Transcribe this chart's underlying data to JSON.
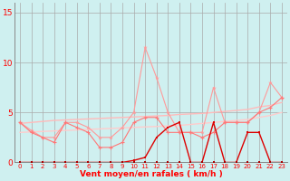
{
  "xlabel": "Vent moyen/en rafales ( km/h )",
  "xlim": [
    -0.5,
    23.5
  ],
  "ylim": [
    0,
    16
  ],
  "yticks": [
    0,
    5,
    10,
    15
  ],
  "xticks": [
    0,
    1,
    2,
    3,
    4,
    5,
    6,
    7,
    8,
    9,
    10,
    11,
    12,
    13,
    14,
    15,
    16,
    17,
    18,
    19,
    20,
    21,
    22,
    23
  ],
  "background_color": "#cff0f0",
  "grid_color": "#aaaaaa",
  "x": [
    0,
    1,
    2,
    3,
    4,
    5,
    6,
    7,
    8,
    9,
    10,
    11,
    12,
    13,
    14,
    15,
    16,
    17,
    18,
    19,
    20,
    21,
    22,
    23
  ],
  "line_rafales": [
    4.0,
    3.2,
    2.5,
    2.5,
    4.0,
    4.0,
    3.5,
    2.5,
    2.5,
    3.5,
    5.0,
    11.5,
    8.5,
    5.0,
    3.0,
    3.0,
    3.0,
    7.5,
    4.0,
    4.0,
    4.0,
    5.0,
    8.0,
    6.5
  ],
  "line_moyen": [
    4.0,
    3.0,
    2.5,
    2.0,
    4.0,
    3.5,
    3.0,
    1.5,
    1.5,
    2.0,
    4.0,
    4.5,
    4.5,
    3.0,
    3.0,
    3.0,
    2.5,
    3.0,
    4.0,
    4.0,
    4.0,
    5.0,
    5.5,
    6.5
  ],
  "line_trend_upper": [
    3.9,
    4.0,
    4.1,
    4.2,
    4.25,
    4.3,
    4.35,
    4.4,
    4.45,
    4.5,
    4.55,
    4.6,
    4.65,
    4.7,
    4.8,
    4.85,
    4.9,
    5.0,
    5.1,
    5.2,
    5.3,
    5.55,
    5.7,
    6.0
  ],
  "line_trend_lower": [
    3.0,
    3.05,
    3.1,
    3.15,
    3.2,
    3.25,
    3.3,
    3.35,
    3.4,
    3.45,
    3.5,
    3.55,
    3.6,
    3.65,
    3.7,
    3.8,
    3.9,
    4.0,
    4.1,
    4.2,
    4.3,
    4.5,
    4.7,
    5.0
  ],
  "line_dark": [
    0.0,
    0.0,
    0.0,
    0.0,
    0.0,
    0.0,
    0.0,
    0.0,
    0.0,
    0.0,
    0.2,
    0.5,
    2.5,
    3.5,
    4.0,
    0.0,
    0.0,
    4.0,
    0.0,
    0.0,
    3.0,
    3.0,
    0.0,
    0.0
  ],
  "line_darkred": [
    0.0,
    0.0,
    0.0,
    0.0,
    0.0,
    0.0,
    0.0,
    0.0,
    0.0,
    0.0,
    0.0,
    0.0,
    0.0,
    0.0,
    0.0,
    0.0,
    0.0,
    0.0,
    0.0,
    0.0,
    0.0,
    0.0,
    0.0,
    0.0
  ],
  "color_light_salmon": "#ff9999",
  "color_salmon": "#ff7777",
  "color_pink_upper": "#ffbbbb",
  "color_pink_lower": "#ffcccc",
  "color_red": "#dd0000",
  "color_darkred": "#aa0000"
}
